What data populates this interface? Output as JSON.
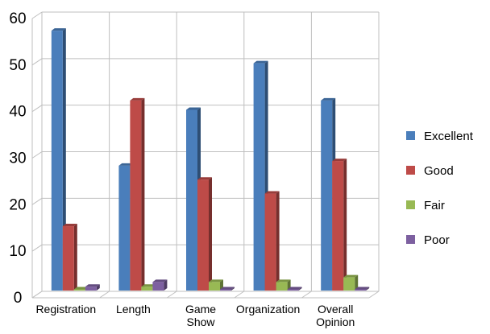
{
  "chart_data": {
    "type": "bar",
    "categories": [
      [
        "Registration"
      ],
      [
        "Length"
      ],
      [
        "Game",
        "Show"
      ],
      [
        "Organization"
      ],
      [
        "Overall",
        "Opinion"
      ]
    ],
    "series": [
      {
        "name": "Excellent",
        "values": [
          56,
          27,
          39,
          49,
          41
        ],
        "color": "#4a7ebb"
      },
      {
        "name": "Good",
        "values": [
          14,
          41,
          24,
          21,
          28
        ],
        "color": "#be4b48"
      },
      {
        "name": "Fair",
        "values": [
          0,
          1,
          2,
          2,
          3
        ],
        "color": "#98b954"
      },
      {
        "name": "Poor",
        "values": [
          1,
          2,
          0,
          0,
          0
        ],
        "color": "#7d60a0"
      }
    ],
    "ylim": [
      0,
      60
    ],
    "yticks": [
      0,
      10,
      20,
      30,
      40,
      50,
      60
    ],
    "grid": true,
    "legend_position": "right",
    "style": "3d-clustered-column"
  }
}
